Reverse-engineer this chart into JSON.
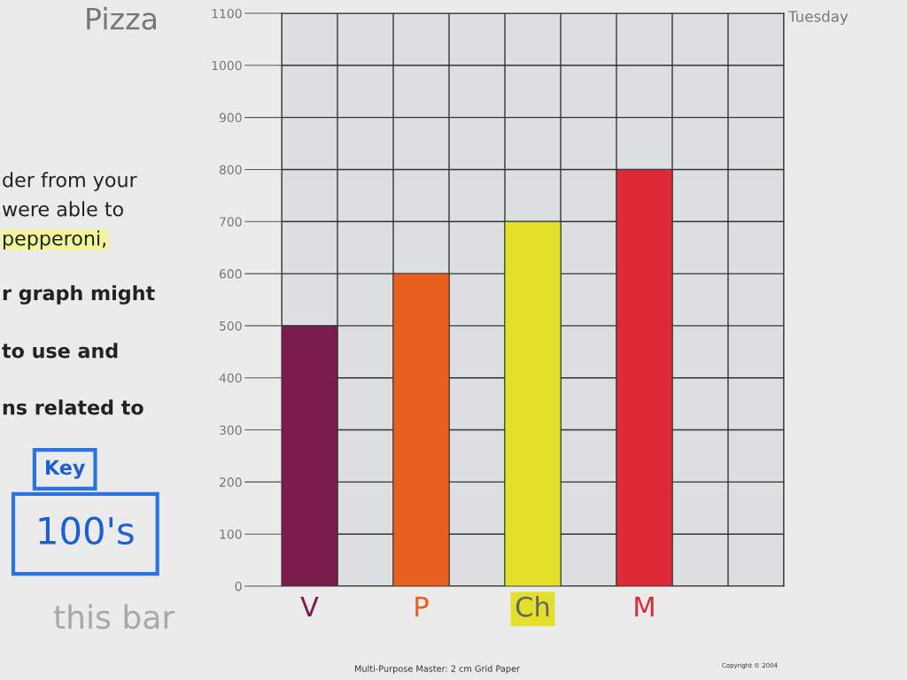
{
  "chart_data": {
    "type": "bar",
    "title": "Pizza",
    "subtitle": "Tuesday",
    "categories": [
      "V",
      "P",
      "Ch",
      "M"
    ],
    "values": [
      500,
      600,
      700,
      800
    ],
    "colors": [
      "#7b1d4c",
      "#e8601e",
      "#e2e02a",
      "#dc2a36"
    ],
    "ylim": [
      0,
      1100
    ],
    "yticks": [
      0,
      100,
      200,
      300,
      400,
      500,
      600,
      700,
      800,
      900,
      1000,
      1100
    ],
    "grid": true,
    "annotations": [
      "der from your",
      "were able to",
      "pepperoni,",
      "r graph might",
      "to use and",
      "ns related to",
      "Key",
      "100's",
      "this bar",
      "Multi-Purpose Master: 2 cm Grid Paper",
      "Copyright © 2004"
    ]
  }
}
